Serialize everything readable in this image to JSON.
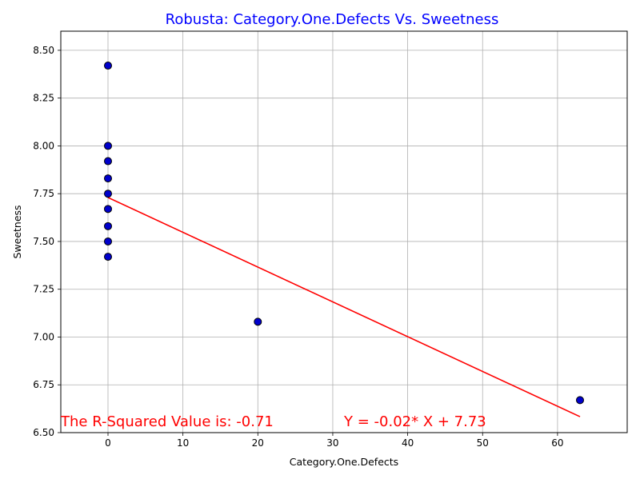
{
  "colors": {
    "title": "#0000ff",
    "marker_fill": "#0000cc",
    "marker_edge": "#000000",
    "regression": "#ff0000",
    "annotation": "#ff0000",
    "grid": "#b0b0b0",
    "axes": "#000000"
  },
  "chart_data": {
    "type": "scatter",
    "title": "Robusta: Category.One.Defects Vs. Sweetness",
    "xlabel": "Category.One.Defects",
    "ylabel": "Sweetness",
    "xlim": [
      -6.3,
      69.3
    ],
    "ylim": [
      6.5,
      8.6
    ],
    "xticks": [
      0,
      10,
      20,
      30,
      40,
      50,
      60
    ],
    "yticks": [
      6.5,
      6.75,
      7.0,
      7.25,
      7.5,
      7.75,
      8.0,
      8.25,
      8.5
    ],
    "xtick_labels": [
      "0",
      "10",
      "20",
      "30",
      "40",
      "50",
      "60"
    ],
    "ytick_labels": [
      "6.50",
      "6.75",
      "7.00",
      "7.25",
      "7.50",
      "7.75",
      "8.00",
      "8.25",
      "8.50"
    ],
    "grid": true,
    "points": [
      {
        "x": 0,
        "y": 8.42
      },
      {
        "x": 0,
        "y": 8.0
      },
      {
        "x": 0,
        "y": 7.92
      },
      {
        "x": 0,
        "y": 7.83
      },
      {
        "x": 0,
        "y": 7.75
      },
      {
        "x": 0,
        "y": 7.67
      },
      {
        "x": 0,
        "y": 7.58
      },
      {
        "x": 0,
        "y": 7.5
      },
      {
        "x": 0,
        "y": 7.42
      },
      {
        "x": 20,
        "y": 7.08
      },
      {
        "x": 63,
        "y": 6.67
      }
    ],
    "regression": {
      "slope": -0.0182,
      "intercept": 7.73,
      "x_range": [
        0,
        63
      ]
    },
    "annotations": {
      "r_squared": "The R-Squared Value is: -0.71",
      "equation": "Y = -0.02* X + 7.73"
    }
  }
}
